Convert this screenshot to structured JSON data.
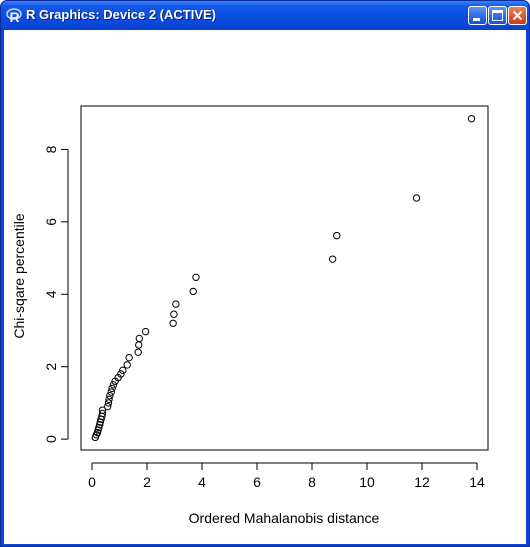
{
  "window": {
    "title": "R Graphics: Device 2 (ACTIVE)"
  },
  "chart_data": {
    "type": "scatter",
    "xlabel": "Ordered Mahalanobis distance",
    "ylabel": "Chi-sqare percentile",
    "xlim": [
      -0.4,
      14.4
    ],
    "ylim": [
      -0.3,
      9.2
    ],
    "x_ticks": [
      0,
      2,
      4,
      6,
      8,
      10,
      12,
      14
    ],
    "y_ticks": [
      0,
      2,
      4,
      6,
      8
    ],
    "marker": "open-circle",
    "grid": false,
    "points": [
      [
        0.12,
        0.05
      ],
      [
        0.16,
        0.12
      ],
      [
        0.2,
        0.18
      ],
      [
        0.22,
        0.25
      ],
      [
        0.25,
        0.32
      ],
      [
        0.28,
        0.4
      ],
      [
        0.3,
        0.47
      ],
      [
        0.33,
        0.55
      ],
      [
        0.36,
        0.63
      ],
      [
        0.38,
        0.71
      ],
      [
        0.38,
        0.8
      ],
      [
        0.57,
        0.9
      ],
      [
        0.6,
        1.0
      ],
      [
        0.62,
        1.1
      ],
      [
        0.65,
        1.2
      ],
      [
        0.7,
        1.3
      ],
      [
        0.73,
        1.4
      ],
      [
        0.78,
        1.5
      ],
      [
        0.84,
        1.6
      ],
      [
        0.95,
        1.7
      ],
      [
        1.05,
        1.8
      ],
      [
        1.12,
        1.9
      ],
      [
        1.28,
        2.05
      ],
      [
        1.35,
        2.25
      ],
      [
        1.68,
        2.4
      ],
      [
        1.7,
        2.6
      ],
      [
        1.72,
        2.78
      ],
      [
        1.95,
        2.97
      ],
      [
        2.95,
        3.2
      ],
      [
        2.98,
        3.45
      ],
      [
        3.05,
        3.73
      ],
      [
        3.68,
        4.08
      ],
      [
        3.78,
        4.47
      ],
      [
        8.75,
        4.97
      ],
      [
        8.9,
        5.62
      ],
      [
        11.8,
        6.66
      ],
      [
        13.8,
        8.85
      ]
    ]
  }
}
